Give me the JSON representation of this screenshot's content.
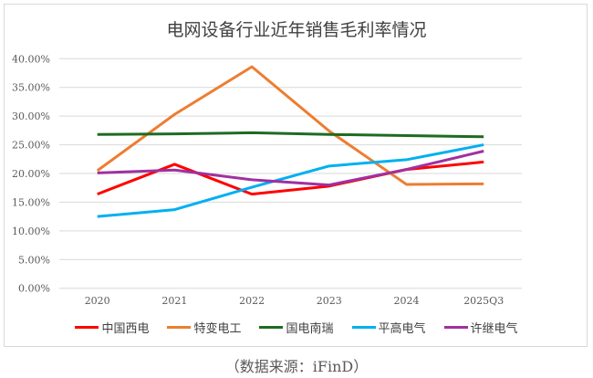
{
  "chart_data": {
    "type": "line",
    "title": "电网设备行业近年销售毛利率情况",
    "categories": [
      "2020",
      "2021",
      "2022",
      "2023",
      "2024",
      "2025Q3"
    ],
    "ylim": [
      0,
      40
    ],
    "yticks": [
      "0.00%",
      "5.00%",
      "10.00%",
      "15.00%",
      "20.00%",
      "25.00%",
      "30.00%",
      "35.00%",
      "40.00%"
    ],
    "grid": true,
    "legend": "bottom",
    "series": [
      {
        "name": "中国西电",
        "color": "#ff0000",
        "values": [
          16.4,
          21.6,
          16.4,
          17.8,
          20.7,
          22.0
        ]
      },
      {
        "name": "特变电工",
        "color": "#ed7d31",
        "values": [
          20.5,
          30.3,
          38.6,
          27.4,
          18.1,
          18.2
        ]
      },
      {
        "name": "国电南瑞",
        "color": "#1e6b22",
        "values": [
          26.8,
          26.9,
          27.1,
          26.8,
          26.6,
          26.4
        ]
      },
      {
        "name": "平高电气",
        "color": "#00b0f0",
        "values": [
          12.5,
          13.7,
          17.6,
          21.3,
          22.4,
          25.0
        ]
      },
      {
        "name": "许继电气",
        "color": "#a030a0",
        "values": [
          20.1,
          20.6,
          18.9,
          18.0,
          20.7,
          23.9
        ]
      }
    ]
  },
  "source": "（数据来源：iFinD）"
}
